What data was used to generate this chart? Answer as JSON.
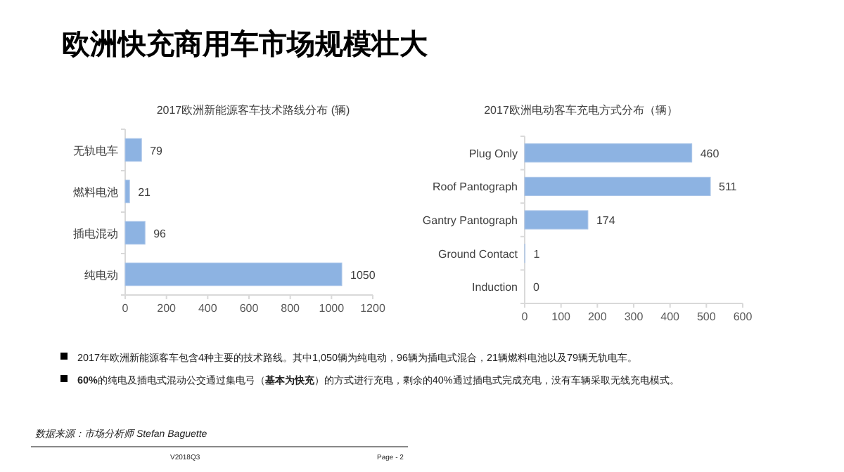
{
  "chart_data": [
    {
      "type": "bar",
      "orientation": "horizontal",
      "title": "2017欧洲新能源客车技术路线分布 (辆)",
      "categories": [
        "无轨电车",
        "燃料电池",
        "插电混动",
        "纯电动"
      ],
      "values": [
        79,
        21,
        96,
        1050
      ],
      "color": "#8db3e2",
      "xlim": [
        0,
        1200
      ],
      "xticks": [
        0,
        200,
        400,
        600,
        800,
        1000,
        1200
      ],
      "data_labels": true
    },
    {
      "type": "bar",
      "orientation": "horizontal",
      "title": "2017欧洲电动客车充电方式分布（辆）",
      "categories": [
        "Plug Only",
        "Roof Pantograph",
        "Gantry Pantograph",
        "Ground Contact",
        "Induction"
      ],
      "values": [
        460,
        511,
        174,
        1,
        0
      ],
      "color": "#8db3e2",
      "xlim": [
        0,
        600
      ],
      "xticks": [
        0,
        100,
        200,
        300,
        400,
        500,
        600
      ],
      "data_labels": true
    },
    {
      "type": "other",
      "title": "欧洲快充商用车市场规模壮大",
      "annotations": [
        "2017年欧洲新能源客车包含4种主要的技术路线。其中1,050辆为纯电动，96辆为插电式混合，21辆燃料电池以及79辆无轨电车。",
        "**60%**的纯电及插电式混动公交通过集电弓（**基本为快充**）的方式进行充电，剩余的40%通过插电式完成充电，没有车辆采取无线充电模式。",
        "数据来源：市场分析师 Stefan Baguette",
        "V2018Q3",
        "Page - 2"
      ]
    }
  ]
}
